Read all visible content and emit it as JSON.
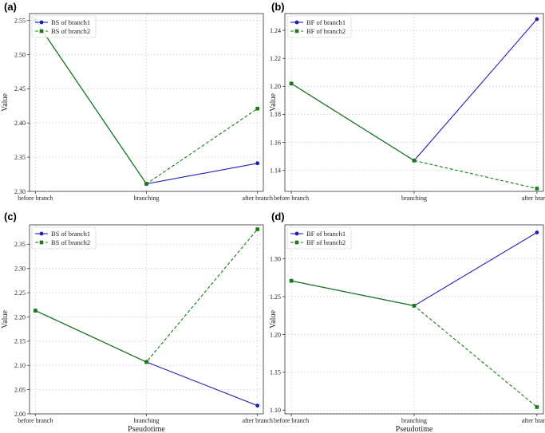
{
  "colors": {
    "branch1": "#1f1fb4",
    "branch2": "#1a7a1a",
    "grid": "#cccccc",
    "frame": "#333333"
  },
  "chart_data": [
    {
      "type": "line",
      "panel_label": "(a)",
      "title": "",
      "xlabel": "",
      "ylabel": "Value",
      "categories": [
        "before branch",
        "branching",
        "after branch"
      ],
      "yticks": [
        "2.30",
        "2.35",
        "2.40",
        "2.45",
        "2.50",
        "2.55"
      ],
      "ylim": [
        2.3,
        2.56
      ],
      "legend_position": "top-left",
      "series": [
        {
          "name": "BS of branch1",
          "values": [
            2.55,
            2.311,
            2.341
          ],
          "style": "solid",
          "marker": "circle"
        },
        {
          "name": "BS of branch2",
          "values": [
            2.55,
            2.311,
            2.421
          ],
          "style": "dashed",
          "marker": "square"
        }
      ]
    },
    {
      "type": "line",
      "panel_label": "(b)",
      "title": "",
      "xlabel": "",
      "ylabel": "Value",
      "categories": [
        "before branch",
        "branching",
        "after branch"
      ],
      "yticks": [
        "1.14",
        "1.16",
        "1.18",
        "1.20",
        "1.22",
        "1.24"
      ],
      "ylim": [
        1.125,
        1.252
      ],
      "legend_position": "top-left",
      "series": [
        {
          "name": "BF of branch1",
          "values": [
            1.202,
            1.147,
            1.248
          ],
          "style": "solid",
          "marker": "circle"
        },
        {
          "name": "BF of branch2",
          "values": [
            1.202,
            1.147,
            1.127
          ],
          "style": "dashed",
          "marker": "square"
        }
      ]
    },
    {
      "type": "line",
      "panel_label": "(c)",
      "title": "",
      "xlabel": "Pseudotime",
      "ylabel": "Value",
      "categories": [
        "before branch",
        "branching",
        "after branch"
      ],
      "yticks": [
        "2.00",
        "2.05",
        "2.10",
        "2.15",
        "2.20",
        "2.25",
        "2.30",
        "2.35"
      ],
      "ylim": [
        2.0,
        2.39
      ],
      "legend_position": "top-left",
      "series": [
        {
          "name": "BS of branch1",
          "values": [
            2.213,
            2.107,
            2.017
          ],
          "style": "solid",
          "marker": "circle"
        },
        {
          "name": "BS of branch2",
          "values": [
            2.213,
            2.107,
            2.381
          ],
          "style": "dashed",
          "marker": "square"
        }
      ]
    },
    {
      "type": "line",
      "panel_label": "(d)",
      "title": "",
      "xlabel": "Pseudotime",
      "ylabel": "Value",
      "categories": [
        "before branch",
        "branching",
        "after branch"
      ],
      "yticks": [
        "1.10",
        "1.15",
        "1.20",
        "1.25",
        "1.30"
      ],
      "ylim": [
        1.095,
        1.345
      ],
      "legend_position": "top-left",
      "series": [
        {
          "name": "BF of branch1",
          "values": [
            1.271,
            1.238,
            1.335
          ],
          "style": "solid",
          "marker": "circle"
        },
        {
          "name": "BF of branch2",
          "values": [
            1.271,
            1.238,
            1.104
          ],
          "style": "dashed",
          "marker": "square"
        }
      ]
    }
  ]
}
